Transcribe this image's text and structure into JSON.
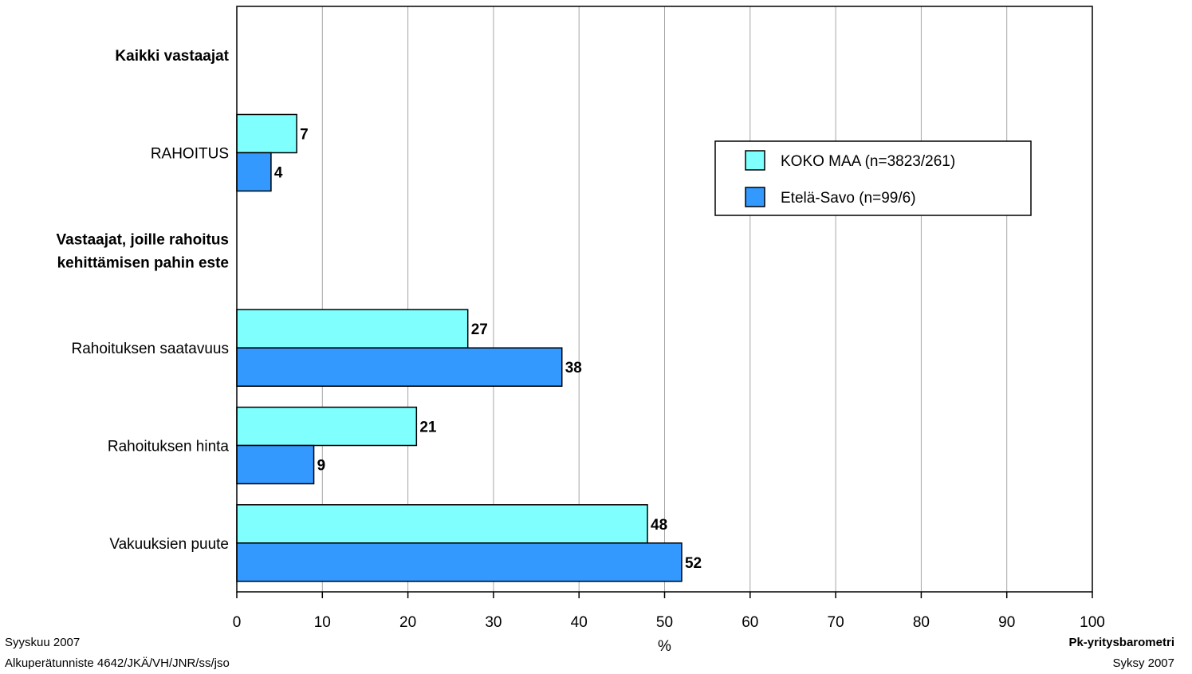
{
  "chart_data": {
    "type": "bar",
    "orientation": "horizontal",
    "xlabel": "%",
    "xlim": [
      0,
      100
    ],
    "xticks": [
      0,
      10,
      20,
      30,
      40,
      50,
      60,
      70,
      80,
      90,
      100
    ],
    "grid": true,
    "legend_position": "top-right",
    "categories": [
      {
        "label": "Kaikki vastaajat",
        "bold": true,
        "header": true
      },
      {
        "label": "RAHOITUS",
        "bold": false,
        "header": false
      },
      {
        "label": "Vastaajat, joille rahoitus kehittämisen pahin este",
        "lines": [
          "Vastaajat, joille rahoitus",
          "kehittämisen pahin este"
        ],
        "bold": true,
        "header": true
      },
      {
        "label": "Rahoituksen saatavuus",
        "bold": false,
        "header": false
      },
      {
        "label": "Rahoituksen hinta",
        "bold": false,
        "header": false
      },
      {
        "label": "Vakuuksien puute",
        "bold": false,
        "header": false
      }
    ],
    "series": [
      {
        "name": "KOKO MAA (n=3823/261)",
        "color": "#80ffff",
        "values": [
          null,
          7,
          null,
          27,
          21,
          48
        ]
      },
      {
        "name": "Etelä-Savo (n=99/6)",
        "color": "#3399ff",
        "values": [
          null,
          4,
          null,
          38,
          9,
          52
        ]
      }
    ]
  },
  "footer": {
    "date": "Syyskuu 2007",
    "reference": "Alkuperätunniste 4642/JKÄ/VH/JNR/ss/jso",
    "brand": "Pk-yritysbarometri",
    "season": "Syksy 2007"
  }
}
